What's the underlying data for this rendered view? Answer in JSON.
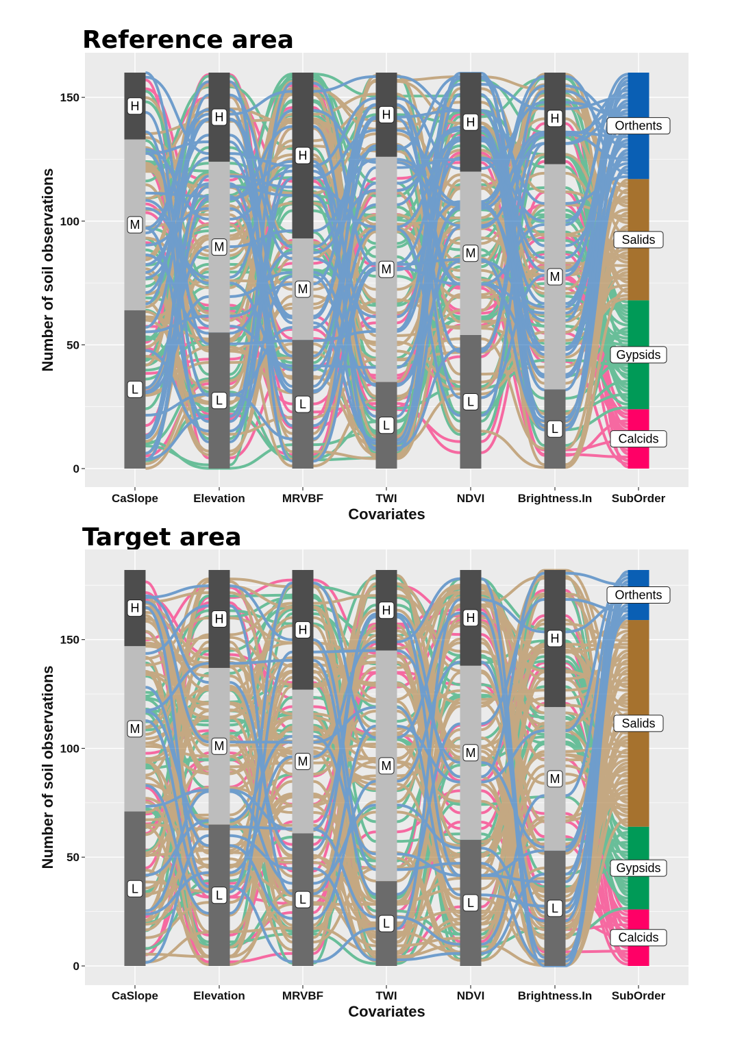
{
  "chart_data": [
    {
      "type": "alluvial",
      "title": "Reference area",
      "xlabel": "Covariates",
      "ylabel": "Number of soil observations",
      "ylim": [
        0,
        160
      ],
      "yticks": [
        0,
        50,
        100,
        150
      ],
      "axes": [
        "CaSlope",
        "Elevation",
        "MRVBF",
        "TWI",
        "NDVI",
        "Brightness.In",
        "SubOrder"
      ],
      "strata": {
        "CaSlope": [
          {
            "label": "L",
            "value": 64
          },
          {
            "label": "M",
            "value": 69
          },
          {
            "label": "H",
            "value": 27
          }
        ],
        "Elevation": [
          {
            "label": "L",
            "value": 55
          },
          {
            "label": "M",
            "value": 69
          },
          {
            "label": "H",
            "value": 36
          }
        ],
        "MRVBF": [
          {
            "label": "L",
            "value": 52
          },
          {
            "label": "M",
            "value": 41
          },
          {
            "label": "H",
            "value": 67
          }
        ],
        "TWI": [
          {
            "label": "L",
            "value": 35
          },
          {
            "label": "M",
            "value": 91
          },
          {
            "label": "H",
            "value": 34
          }
        ],
        "NDVI": [
          {
            "label": "L",
            "value": 54
          },
          {
            "label": "M",
            "value": 66
          },
          {
            "label": "H",
            "value": 40
          }
        ],
        "Brightness.In": [
          {
            "label": "L",
            "value": 32
          },
          {
            "label": "M",
            "value": 91
          },
          {
            "label": "H",
            "value": 37
          }
        ],
        "SubOrder": [
          {
            "label": "Calcids",
            "value": 24
          },
          {
            "label": "Gypsids",
            "value": 44
          },
          {
            "label": "Salids",
            "value": 49
          },
          {
            "label": "Orthents",
            "value": 43
          }
        ]
      },
      "grid": true,
      "legend": "none"
    },
    {
      "type": "alluvial",
      "title": "Target area",
      "xlabel": "Covariates",
      "ylabel": "Number of soil observations",
      "ylim": [
        0,
        182
      ],
      "yticks": [
        0,
        50,
        100,
        150
      ],
      "axes": [
        "CaSlope",
        "Elevation",
        "MRVBF",
        "TWI",
        "NDVI",
        "Brightness.In",
        "SubOrder"
      ],
      "strata": {
        "CaSlope": [
          {
            "label": "L",
            "value": 71
          },
          {
            "label": "M",
            "value": 76
          },
          {
            "label": "H",
            "value": 35
          }
        ],
        "Elevation": [
          {
            "label": "L",
            "value": 65
          },
          {
            "label": "M",
            "value": 72
          },
          {
            "label": "H",
            "value": 45
          }
        ],
        "MRVBF": [
          {
            "label": "L",
            "value": 61
          },
          {
            "label": "M",
            "value": 66
          },
          {
            "label": "H",
            "value": 55
          }
        ],
        "TWI": [
          {
            "label": "L",
            "value": 39
          },
          {
            "label": "M",
            "value": 106
          },
          {
            "label": "H",
            "value": 37
          }
        ],
        "NDVI": [
          {
            "label": "L",
            "value": 58
          },
          {
            "label": "M",
            "value": 80
          },
          {
            "label": "H",
            "value": 44
          }
        ],
        "Brightness.In": [
          {
            "label": "L",
            "value": 53
          },
          {
            "label": "M",
            "value": 66
          },
          {
            "label": "H",
            "value": 63
          }
        ],
        "SubOrder": [
          {
            "label": "Calcids",
            "value": 26
          },
          {
            "label": "Gypsids",
            "value": 38
          },
          {
            "label": "Salids",
            "value": 95
          },
          {
            "label": "Orthents",
            "value": 23
          }
        ]
      },
      "grid": true,
      "legend": "none"
    }
  ],
  "colors": {
    "panel_bg": "#ebebeb",
    "grid": "#ffffff",
    "stratum_L": "#6b6b6b",
    "stratum_M": "#bdbdbd",
    "stratum_H": "#4d4d4d",
    "Orthents": "#0a5fb4",
    "Salids": "#a6722e",
    "Gypsids": "#009a57",
    "Calcids": "#ff0066"
  }
}
